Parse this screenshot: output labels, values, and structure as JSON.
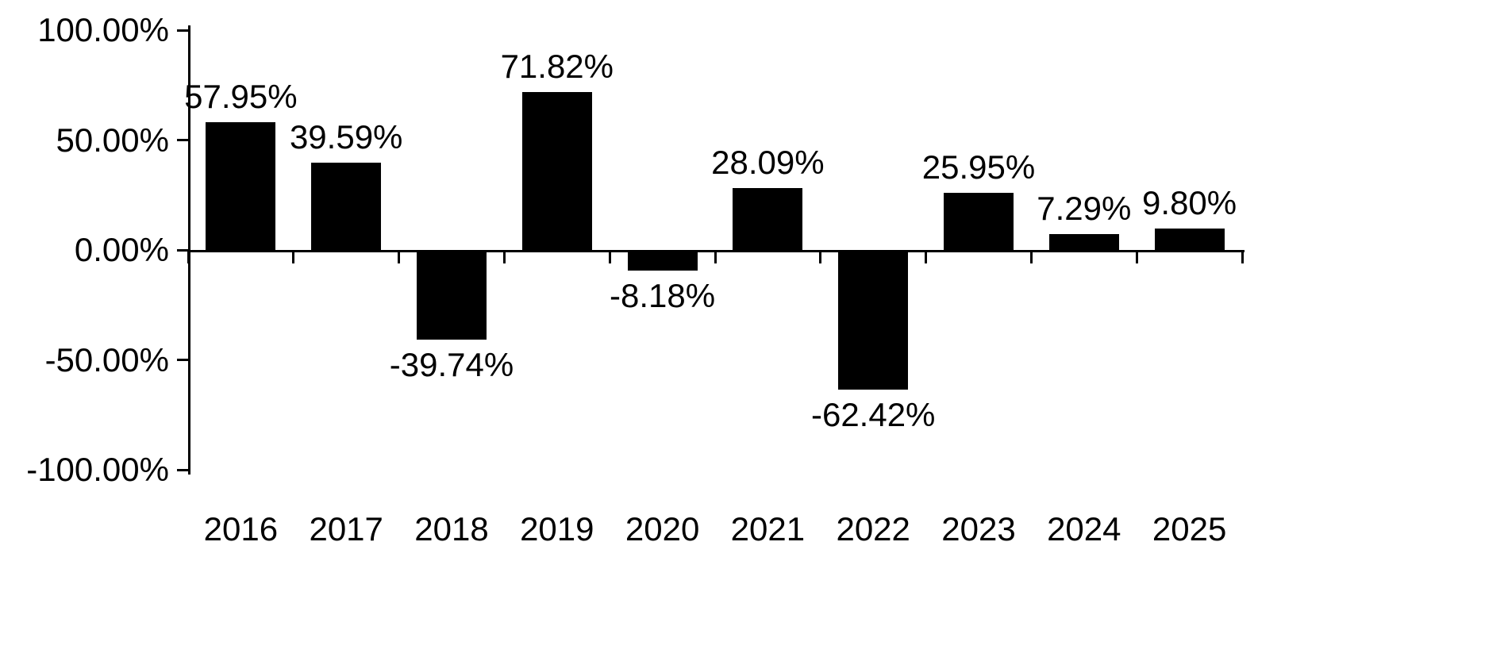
{
  "chart_data": {
    "type": "bar",
    "title": "",
    "xlabel": "",
    "ylabel": "",
    "categories": [
      "2016",
      "2017",
      "2018",
      "2019",
      "2020",
      "2021",
      "2022",
      "2023",
      "2024",
      "2025"
    ],
    "values": [
      57.95,
      39.59,
      -39.74,
      71.82,
      -8.18,
      28.09,
      -62.42,
      25.95,
      7.29,
      9.8
    ],
    "value_labels": [
      "57.95%",
      "39.59%",
      "-39.74%",
      "71.82%",
      "-8.18%",
      "28.09%",
      "-62.42%",
      "25.95%",
      "7.29%",
      "9.80%"
    ],
    "ylim": [
      -100,
      100
    ],
    "yticks": [
      100,
      50,
      0,
      -50,
      -100
    ],
    "ytick_labels": [
      "100.00%",
      "50.00%",
      "0.00%",
      "-50.00%",
      "-100.00%"
    ],
    "bar_color": "#000000",
    "axis_color": "#000000",
    "text_color": "#000000",
    "background": "#ffffff",
    "grid": false,
    "legend": "none",
    "data_label_position": "outside-end"
  }
}
